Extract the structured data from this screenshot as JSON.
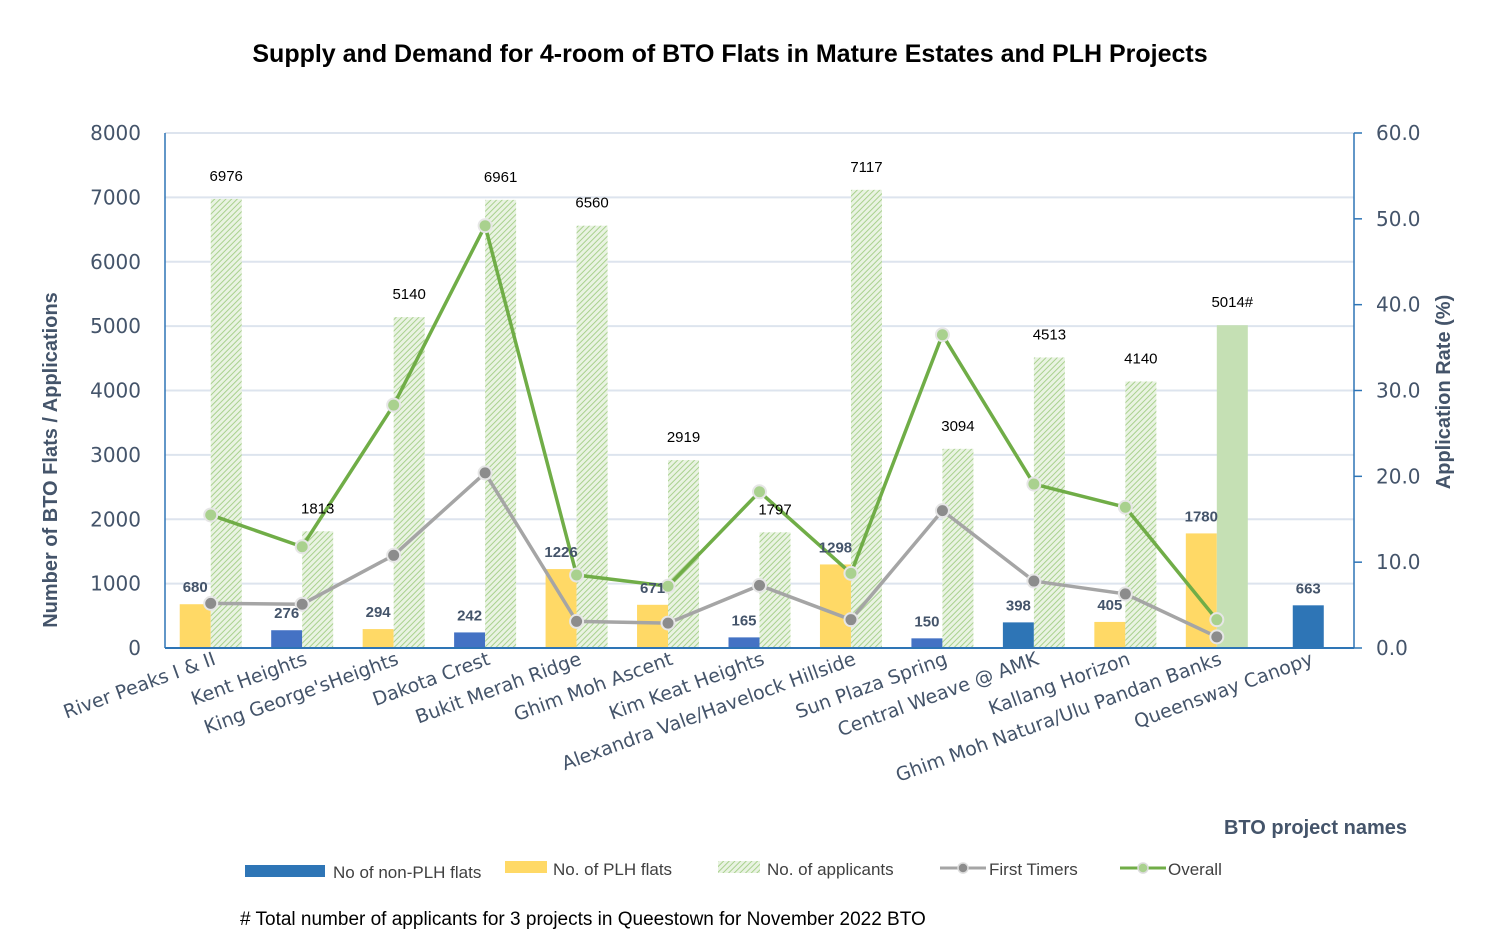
{
  "chart_data": {
    "type": "bar",
    "title": "Supply and Demand for 4-room of BTO Flats in Mature Estates and PLH Projects",
    "xlabel": "BTO project names",
    "ylabel": "Number of BTO Flats / Applications",
    "y2label": "Application Rate (%)",
    "ylim": [
      0,
      8000
    ],
    "y2lim": [
      0,
      60
    ],
    "yticks": [
      "0",
      "1000",
      "2000",
      "3000",
      "4000",
      "5000",
      "6000",
      "7000",
      "8000"
    ],
    "y2ticks": [
      "0.0",
      "10.0",
      "20.0",
      "30.0",
      "40.0",
      "50.0",
      "60.0"
    ],
    "grid": true,
    "legend_position": "bottom",
    "categories": [
      "River Peaks I & II",
      "Kent Heights",
      "King George'sHeights",
      "Dakota Crest",
      "Bukit Merah Ridge",
      "Ghim Moh Ascent",
      "Kim Keat Heights",
      "Alexandra Vale/Havelock Hillside",
      "Sun Plaza Spring",
      "Central Weave @ AMK",
      "Kallang Horizon",
      "Ghim Moh Natura/Ulu Pandan Banks",
      "Queensway Canopy"
    ],
    "flat_type": [
      "PLH",
      "non-PLH",
      "PLH",
      "non-PLH",
      "PLH",
      "PLH",
      "non-PLH",
      "PLH",
      "non-PLH",
      "non-PLH",
      "PLH",
      "PLH",
      "non-PLH"
    ],
    "series": [
      {
        "name": "No of non-PLH flats / No. of PLH flats",
        "kind": "bar",
        "values": [
          680,
          276,
          294,
          242,
          1226,
          671,
          165,
          1298,
          150,
          398,
          405,
          1780,
          663
        ],
        "labels": [
          "680",
          "276",
          "294",
          "242",
          "1226",
          "671",
          "165",
          "1298",
          "150",
          "398",
          "405",
          "1780",
          "663"
        ]
      },
      {
        "name": "No. of applicants",
        "kind": "bar",
        "values": [
          6976,
          1813,
          5140,
          6961,
          6560,
          2919,
          1797,
          7117,
          3094,
          4513,
          4140,
          5014,
          null
        ],
        "labels": [
          "6976",
          "1813",
          "5140",
          "6961",
          "6560",
          "2919",
          "1797",
          "7117",
          "3094",
          "4513",
          "4140",
          "5014#",
          ""
        ]
      },
      {
        "name": "First Timers",
        "kind": "line",
        "axis": "right",
        "values": [
          5.2,
          5.1,
          10.8,
          20.4,
          3.1,
          2.9,
          7.3,
          3.3,
          16.0,
          7.8,
          6.3,
          1.3,
          null
        ]
      },
      {
        "name": "Overall",
        "kind": "line",
        "axis": "right",
        "values": [
          15.5,
          11.8,
          28.3,
          49.2,
          8.5,
          7.2,
          18.2,
          8.7,
          36.5,
          19.1,
          16.4,
          3.3,
          null
        ]
      }
    ],
    "legend": [
      {
        "name": "No of non-PLH flats",
        "color": "#2e75b6"
      },
      {
        "name": "No. of PLH flats",
        "color": "#ffd966"
      },
      {
        "name": "No. of applicants",
        "color": "#c5e0b4"
      },
      {
        "name": "First Timers",
        "color": "#a5a5a5"
      },
      {
        "name": "Overall",
        "color": "#70ad47"
      }
    ],
    "footnote": "# Total number of applicants for 3 projects in Queestown for November 2022 BTO"
  },
  "colors": {
    "nonplh": "#4472c4",
    "nonplh_last": "#2e75b6",
    "plh": "#ffd966",
    "applicants": "#c5e0b4",
    "first_timers": "#a5a5a5",
    "overall": "#70ad47",
    "axis": "#2e75b6",
    "grid": "#dde4ee"
  }
}
